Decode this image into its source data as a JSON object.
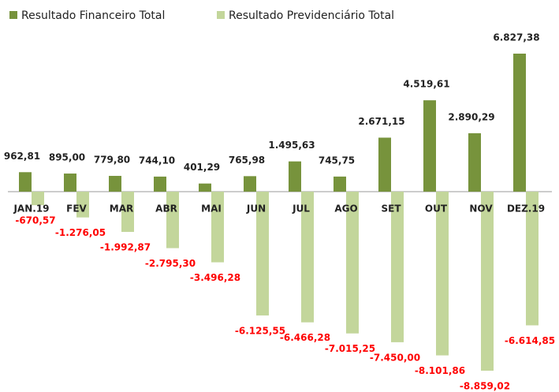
{
  "chart_data": {
    "type": "bar",
    "categories": [
      "JAN.19",
      "FEV",
      "MAR",
      "ABR",
      "MAI",
      "JUN",
      "JUL",
      "AGO",
      "SET",
      "OUT",
      "NOV",
      "DEZ.19"
    ],
    "series": [
      {
        "name": "Resultado Financeiro Total",
        "color": "#77933c",
        "values": [
          962.81,
          895.0,
          779.8,
          744.1,
          401.29,
          765.98,
          1495.63,
          745.75,
          2671.15,
          4519.61,
          2890.29,
          6827.38
        ],
        "value_labels": [
          "962,81",
          "895,00",
          "779,80",
          "744,10",
          "401,29",
          "765,98",
          "1.495,63",
          "745,75",
          "2.671,15",
          "4.519,61",
          "2.890,29",
          "6.827,38"
        ]
      },
      {
        "name": "Resultado Previdenciário Total",
        "color": "#c3d69b",
        "values": [
          -670.57,
          -1276.05,
          -1992.87,
          -2795.3,
          -3496.28,
          -6125.55,
          -6466.28,
          -7015.25,
          -7450.0,
          -8101.86,
          -8859.02,
          -6614.85
        ],
        "value_labels": [
          "-670,57",
          "-1.276,05",
          "-1.992,87",
          "-2.795,30",
          "-3.496,28",
          "-6.125,55",
          "-6.466,28",
          "-7.015,25",
          "-7.450,00",
          "-8.101,86",
          "-8.859,02",
          "-6.614,85"
        ]
      }
    ],
    "legend": "top-left"
  }
}
